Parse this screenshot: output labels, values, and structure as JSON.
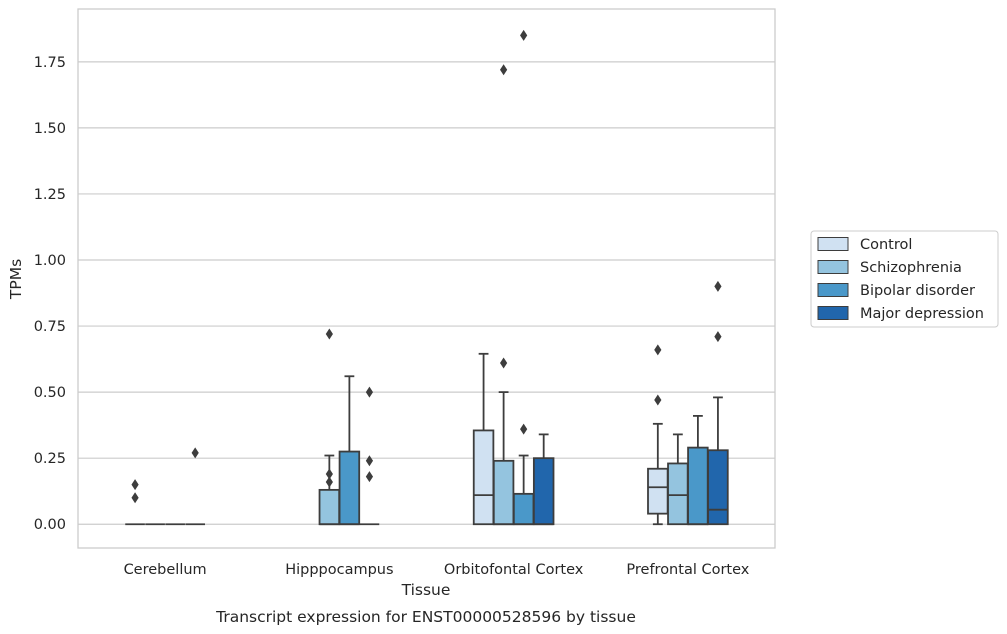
{
  "caption": "Transcript expression for ENST00000528596 by tissue",
  "chart_data": {
    "type": "box",
    "xlabel": "Tissue",
    "ylabel": "TPMs",
    "ylim": [
      -0.09,
      1.95
    ],
    "yticks": [
      "0.00",
      "0.25",
      "0.50",
      "0.75",
      "1.00",
      "1.25",
      "1.50",
      "1.75"
    ],
    "ytick_values": [
      0,
      0.25,
      0.5,
      0.75,
      1.0,
      1.25,
      1.5,
      1.75
    ],
    "grid": "horizontal",
    "legend_position": "right",
    "categories": [
      "Cerebellum",
      "Hipppocampus",
      "Orbitofontal Cortex",
      "Prefrontal Cortex"
    ],
    "series": [
      {
        "name": "Control",
        "color": "#d0e1f2",
        "boxes": [
          {
            "whisker_low": 0,
            "q1": 0,
            "median": 0,
            "q3": 0,
            "whisker_high": 0,
            "outliers": [
              0.1,
              0.15
            ]
          },
          null,
          {
            "whisker_low": 0,
            "q1": 0,
            "median": 0.11,
            "q3": 0.355,
            "whisker_high": 0.645,
            "outliers": []
          },
          {
            "whisker_low": 0,
            "q1": 0.04,
            "median": 0.14,
            "q3": 0.21,
            "whisker_high": 0.38,
            "outliers": [
              0.47,
              0.66
            ]
          }
        ]
      },
      {
        "name": "Schizophrenia",
        "color": "#94c4df",
        "boxes": [
          {
            "whisker_low": 0,
            "q1": 0,
            "median": 0,
            "q3": 0,
            "whisker_high": 0,
            "outliers": []
          },
          {
            "whisker_low": 0,
            "q1": 0,
            "median": 0,
            "q3": 0.13,
            "whisker_high": 0.26,
            "outliers": [
              0.16,
              0.19,
              0.72
            ]
          },
          {
            "whisker_low": 0,
            "q1": 0,
            "median": 0,
            "q3": 0.24,
            "whisker_high": 0.5,
            "outliers": [
              0.61,
              1.72
            ]
          },
          {
            "whisker_low": 0,
            "q1": 0,
            "median": 0.11,
            "q3": 0.23,
            "whisker_high": 0.34,
            "outliers": []
          }
        ]
      },
      {
        "name": "Bipolar disorder",
        "color": "#4a98c9",
        "boxes": [
          {
            "whisker_low": 0,
            "q1": 0,
            "median": 0,
            "q3": 0,
            "whisker_high": 0,
            "outliers": []
          },
          {
            "whisker_low": 0,
            "q1": 0,
            "median": 0,
            "q3": 0.275,
            "whisker_high": 0.56,
            "outliers": []
          },
          {
            "whisker_low": 0,
            "q1": 0,
            "median": 0,
            "q3": 0.115,
            "whisker_high": 0.26,
            "outliers": [
              0.36,
              1.85
            ]
          },
          {
            "whisker_low": 0,
            "q1": 0,
            "median": 0,
            "q3": 0.29,
            "whisker_high": 0.41,
            "outliers": []
          }
        ]
      },
      {
        "name": "Major depression",
        "color": "#2166ac",
        "boxes": [
          {
            "whisker_low": 0,
            "q1": 0,
            "median": 0,
            "q3": 0,
            "whisker_high": 0,
            "outliers": [
              0.27
            ]
          },
          {
            "whisker_low": 0,
            "q1": 0,
            "median": 0,
            "q3": 0,
            "whisker_high": 0,
            "outliers": [
              0.18,
              0.24,
              0.5
            ]
          },
          {
            "whisker_low": 0,
            "q1": 0,
            "median": 0,
            "q3": 0.25,
            "whisker_high": 0.34,
            "outliers": []
          },
          {
            "whisker_low": 0,
            "q1": 0,
            "median": 0.055,
            "q3": 0.28,
            "whisker_high": 0.48,
            "outliers": [
              0.71,
              0.9
            ]
          }
        ]
      }
    ]
  }
}
